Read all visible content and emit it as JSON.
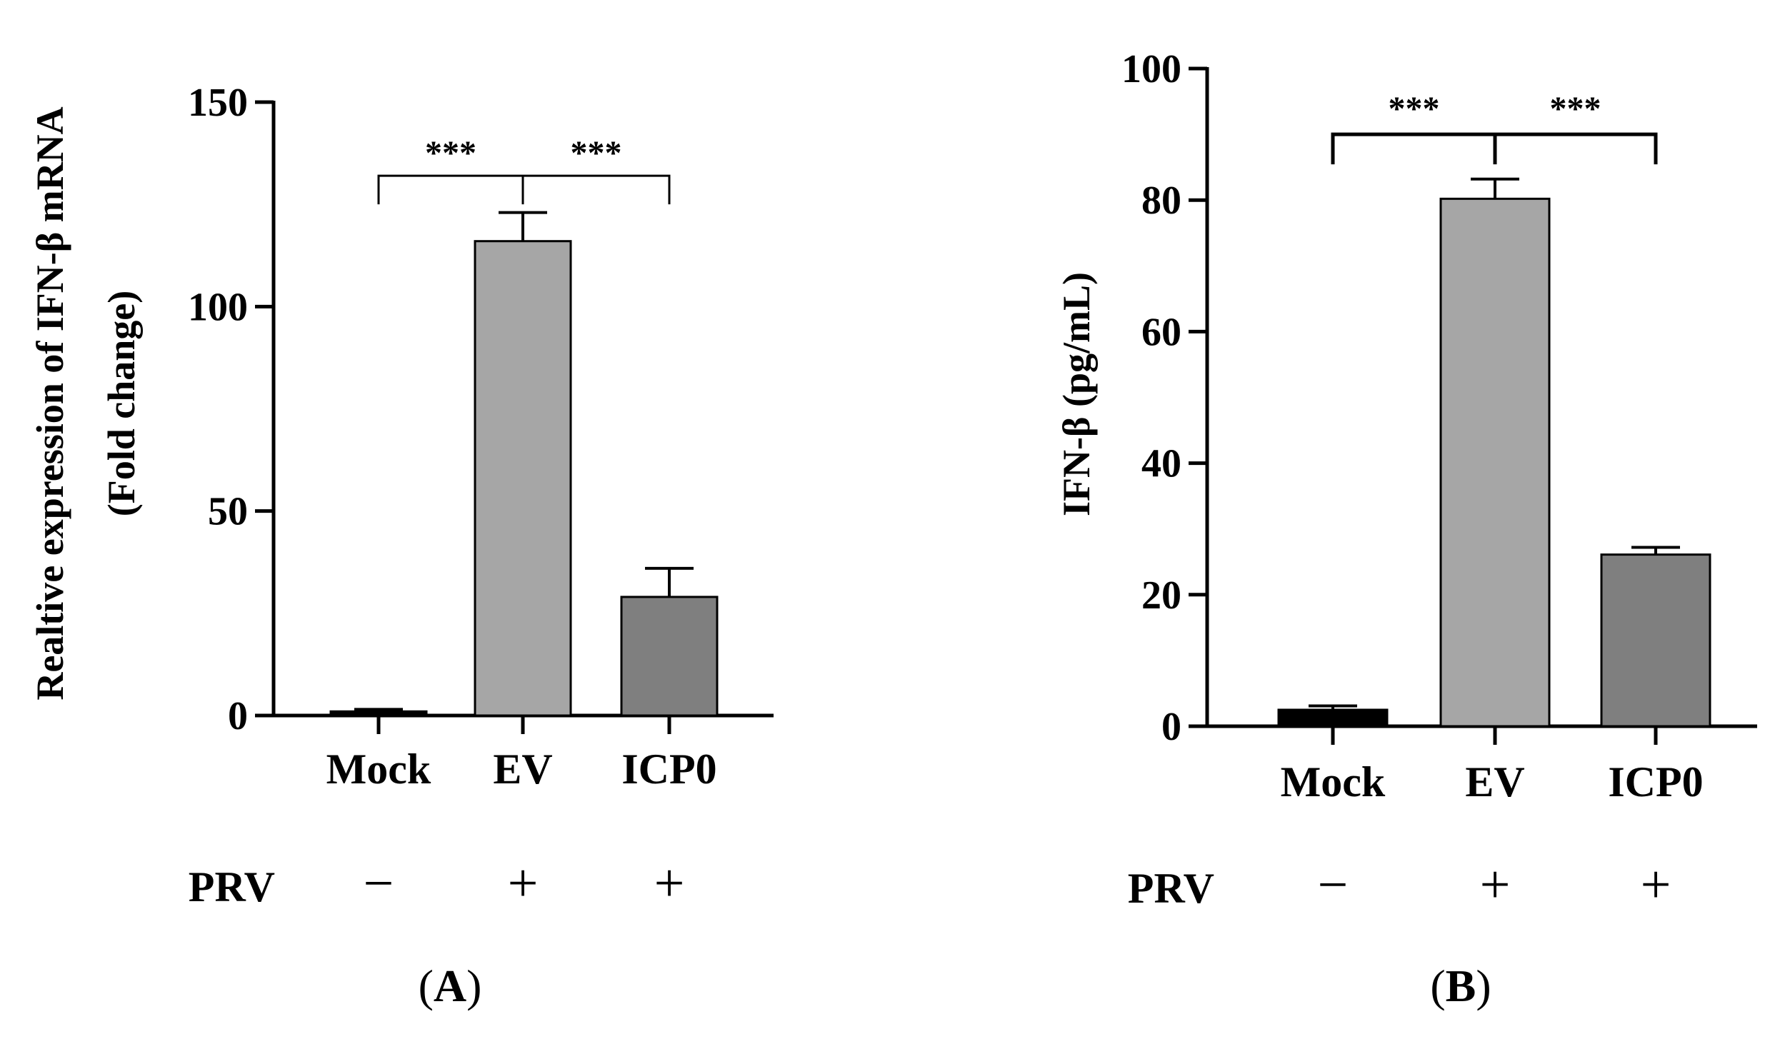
{
  "chart_data": [
    {
      "type": "bar",
      "panel": "A",
      "ylabel_lines": [
        "Realtive expression of IFN-β mRNA",
        "(Fold change)"
      ],
      "xlabel": "",
      "categories": [
        "Mock",
        "EV",
        "ICP0"
      ],
      "values": [
        1,
        116,
        29
      ],
      "errors": [
        0.5,
        7,
        7
      ],
      "colors": [
        "#000000",
        "#a6a6a6",
        "#7f7f7f"
      ],
      "ylim": [
        0,
        150
      ],
      "yticks": [
        0,
        50,
        100,
        150
      ],
      "ytick_labels": [
        "0",
        "50",
        "100",
        "150"
      ],
      "prv_label": "PRV",
      "prv_signs": [
        "−",
        "+",
        "+"
      ],
      "significance": {
        "label_left": "***",
        "label_right": "***",
        "bracket_y": 132
      },
      "panel_label": {
        "open": "(",
        "letter": "A",
        "close": ")"
      }
    },
    {
      "type": "bar",
      "panel": "B",
      "ylabel_lines": [
        "IFN-β (pg/mL)"
      ],
      "xlabel": "",
      "categories": [
        "Mock",
        "EV",
        "ICP0"
      ],
      "values": [
        2.5,
        80.2,
        26.1
      ],
      "errors": [
        0.6,
        3,
        1.1
      ],
      "colors": [
        "#000000",
        "#a6a6a6",
        "#7f7f7f"
      ],
      "ylim": [
        0,
        100
      ],
      "yticks": [
        0,
        20,
        40,
        60,
        80,
        100
      ],
      "ytick_labels": [
        "0",
        "20",
        "40",
        "60",
        "80",
        "100"
      ],
      "prv_label": "PRV",
      "prv_signs": [
        "−",
        "+",
        "+"
      ],
      "significance": {
        "label_left": "***",
        "label_right": "***",
        "bracket_y": 90
      },
      "panel_label": {
        "open": "(",
        "letter": "B",
        "close": ")"
      }
    }
  ]
}
